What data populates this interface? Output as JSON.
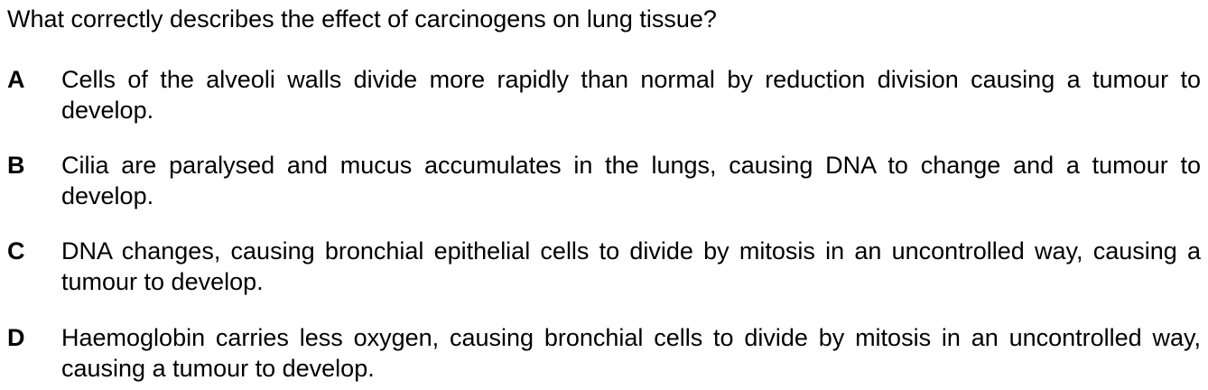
{
  "question": "What correctly describes the effect of carcinogens on lung tissue?",
  "options": [
    {
      "letter": "A",
      "text": "Cells of the alveoli walls divide more rapidly than normal by reduction division causing a tumour to develop."
    },
    {
      "letter": "B",
      "text": "Cilia are paralysed and mucus accumulates in the lungs, causing DNA to change and a tumour to develop."
    },
    {
      "letter": "C",
      "text": "DNA changes, causing bronchial epithelial cells to divide by mitosis in an uncontrolled way, causing a tumour to develop."
    },
    {
      "letter": "D",
      "text": "Haemoglobin carries less oxygen, causing bronchial cells to divide by mitosis in an uncontrolled way, causing a tumour to develop."
    }
  ]
}
